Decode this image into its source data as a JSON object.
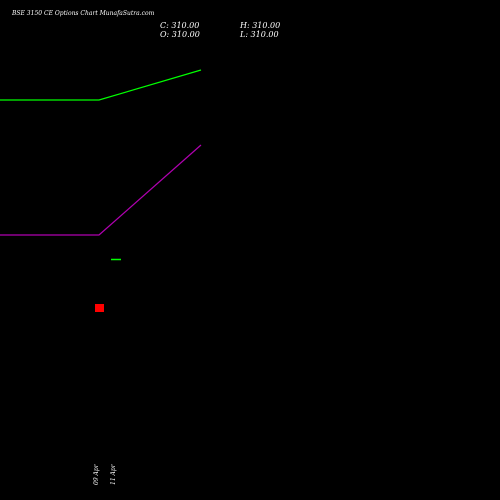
{
  "header": {
    "title": "BSE 3150 CE Options Chart MunafaSutra.com",
    "close_label": "C: 310.00",
    "high_label": "H: 310.00",
    "open_label": "O: 310.00",
    "low_label": "L: 310.00"
  },
  "chart_data": {
    "type": "line",
    "x_tick_labels": [
      "09 Apr",
      "11 Apr"
    ],
    "series": [
      {
        "color": "#00ff00"
      },
      {
        "color": "#b000b0"
      }
    ],
    "markers": [
      {
        "color": "#ff0000"
      },
      {
        "color": "#00ff00"
      }
    ]
  }
}
